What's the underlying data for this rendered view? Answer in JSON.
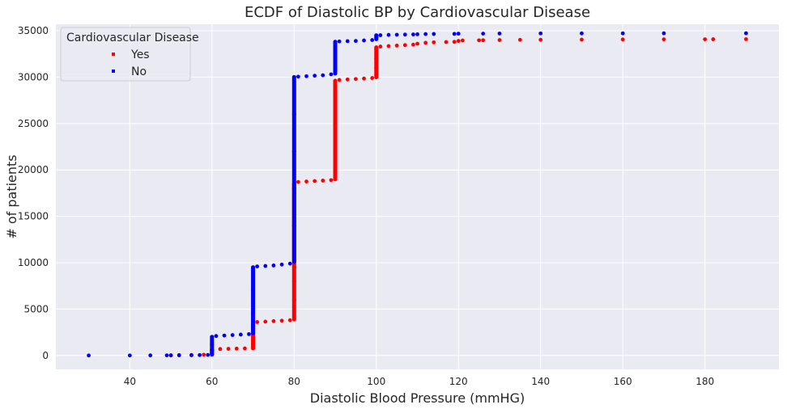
{
  "chart_data": {
    "type": "scatter",
    "title": "ECDF of Diastolic BP by Cardiovascular Disease",
    "xlabel": "Diastolic Blood Pressure (mmHG)",
    "ylabel": "# of patients",
    "xlim": [
      22,
      198
    ],
    "ylim": [
      -1500,
      35700
    ],
    "xticks": [
      40,
      60,
      80,
      100,
      120,
      140,
      160,
      180
    ],
    "yticks": [
      0,
      5000,
      10000,
      15000,
      20000,
      25000,
      30000,
      35000
    ],
    "grid": true,
    "legend": {
      "title": "Cardiovascular Disease",
      "position": "top-left"
    },
    "series": [
      {
        "name": "Yes",
        "color": "#ff0000",
        "points": [
          [
            50,
            10
          ],
          [
            52,
            40
          ],
          [
            55,
            60
          ],
          [
            58,
            80
          ],
          [
            60,
            100
          ],
          [
            60,
            300
          ],
          [
            60,
            500
          ],
          [
            60,
            650
          ],
          [
            62,
            700
          ],
          [
            64,
            720
          ],
          [
            66,
            740
          ],
          [
            68,
            760
          ],
          [
            70,
            780
          ],
          [
            70,
            1500
          ],
          [
            70,
            2500
          ],
          [
            70,
            3500
          ],
          [
            71,
            3600
          ],
          [
            73,
            3650
          ],
          [
            75,
            3700
          ],
          [
            77,
            3750
          ],
          [
            79,
            3800
          ],
          [
            80,
            3900
          ],
          [
            80,
            6000
          ],
          [
            80,
            8000
          ],
          [
            80,
            9500
          ],
          [
            80,
            18500
          ],
          [
            81,
            18700
          ],
          [
            83,
            18750
          ],
          [
            85,
            18800
          ],
          [
            87,
            18850
          ],
          [
            89,
            18900
          ],
          [
            90,
            19000
          ],
          [
            90,
            22000
          ],
          [
            90,
            25000
          ],
          [
            90,
            28000
          ],
          [
            90,
            29600
          ],
          [
            91,
            29700
          ],
          [
            93,
            29750
          ],
          [
            95,
            29800
          ],
          [
            97,
            29850
          ],
          [
            99,
            29900
          ],
          [
            100,
            30000
          ],
          [
            100,
            31000
          ],
          [
            100,
            32000
          ],
          [
            100,
            33200
          ],
          [
            101,
            33300
          ],
          [
            103,
            33350
          ],
          [
            105,
            33400
          ],
          [
            107,
            33450
          ],
          [
            109,
            33500
          ],
          [
            110,
            33600
          ],
          [
            112,
            33700
          ],
          [
            114,
            33750
          ],
          [
            117,
            33780
          ],
          [
            119,
            33800
          ],
          [
            120,
            33900
          ],
          [
            121,
            33950
          ],
          [
            125,
            33970
          ],
          [
            126,
            33980
          ],
          [
            130,
            34000
          ],
          [
            135,
            34020
          ],
          [
            140,
            34030
          ],
          [
            150,
            34040
          ],
          [
            160,
            34060
          ],
          [
            170,
            34070
          ],
          [
            180,
            34080
          ],
          [
            182,
            34085
          ],
          [
            190,
            34090
          ]
        ]
      },
      {
        "name": "No",
        "color": "#0000ff",
        "points": [
          [
            30,
            0
          ],
          [
            40,
            5
          ],
          [
            45,
            10
          ],
          [
            49,
            15
          ],
          [
            50,
            20
          ],
          [
            52,
            25
          ],
          [
            55,
            30
          ],
          [
            57,
            40
          ],
          [
            59,
            60
          ],
          [
            60,
            100
          ],
          [
            60,
            600
          ],
          [
            60,
            1200
          ],
          [
            60,
            2000
          ],
          [
            61,
            2100
          ],
          [
            63,
            2150
          ],
          [
            65,
            2200
          ],
          [
            67,
            2250
          ],
          [
            69,
            2300
          ],
          [
            70,
            2400
          ],
          [
            70,
            4500
          ],
          [
            70,
            7000
          ],
          [
            70,
            9500
          ],
          [
            71,
            9600
          ],
          [
            73,
            9650
          ],
          [
            75,
            9700
          ],
          [
            77,
            9800
          ],
          [
            79,
            9900
          ],
          [
            80,
            10100
          ],
          [
            80,
            14000
          ],
          [
            80,
            18000
          ],
          [
            80,
            22000
          ],
          [
            80,
            26000
          ],
          [
            80,
            30000
          ],
          [
            81,
            30050
          ],
          [
            83,
            30100
          ],
          [
            85,
            30150
          ],
          [
            87,
            30200
          ],
          [
            89,
            30300
          ],
          [
            90,
            30400
          ],
          [
            90,
            31500
          ],
          [
            90,
            32500
          ],
          [
            90,
            33800
          ],
          [
            91,
            33850
          ],
          [
            93,
            33880
          ],
          [
            95,
            33900
          ],
          [
            97,
            33950
          ],
          [
            99,
            34000
          ],
          [
            100,
            34100
          ],
          [
            100,
            34300
          ],
          [
            100,
            34500
          ],
          [
            101,
            34520
          ],
          [
            103,
            34550
          ],
          [
            105,
            34570
          ],
          [
            107,
            34590
          ],
          [
            109,
            34600
          ],
          [
            110,
            34620
          ],
          [
            112,
            34640
          ],
          [
            114,
            34650
          ],
          [
            119,
            34660
          ],
          [
            120,
            34680
          ],
          [
            126,
            34690
          ],
          [
            130,
            34700
          ],
          [
            140,
            34710
          ],
          [
            150,
            34715
          ],
          [
            160,
            34720
          ],
          [
            170,
            34725
          ],
          [
            190,
            34730
          ]
        ]
      }
    ]
  }
}
